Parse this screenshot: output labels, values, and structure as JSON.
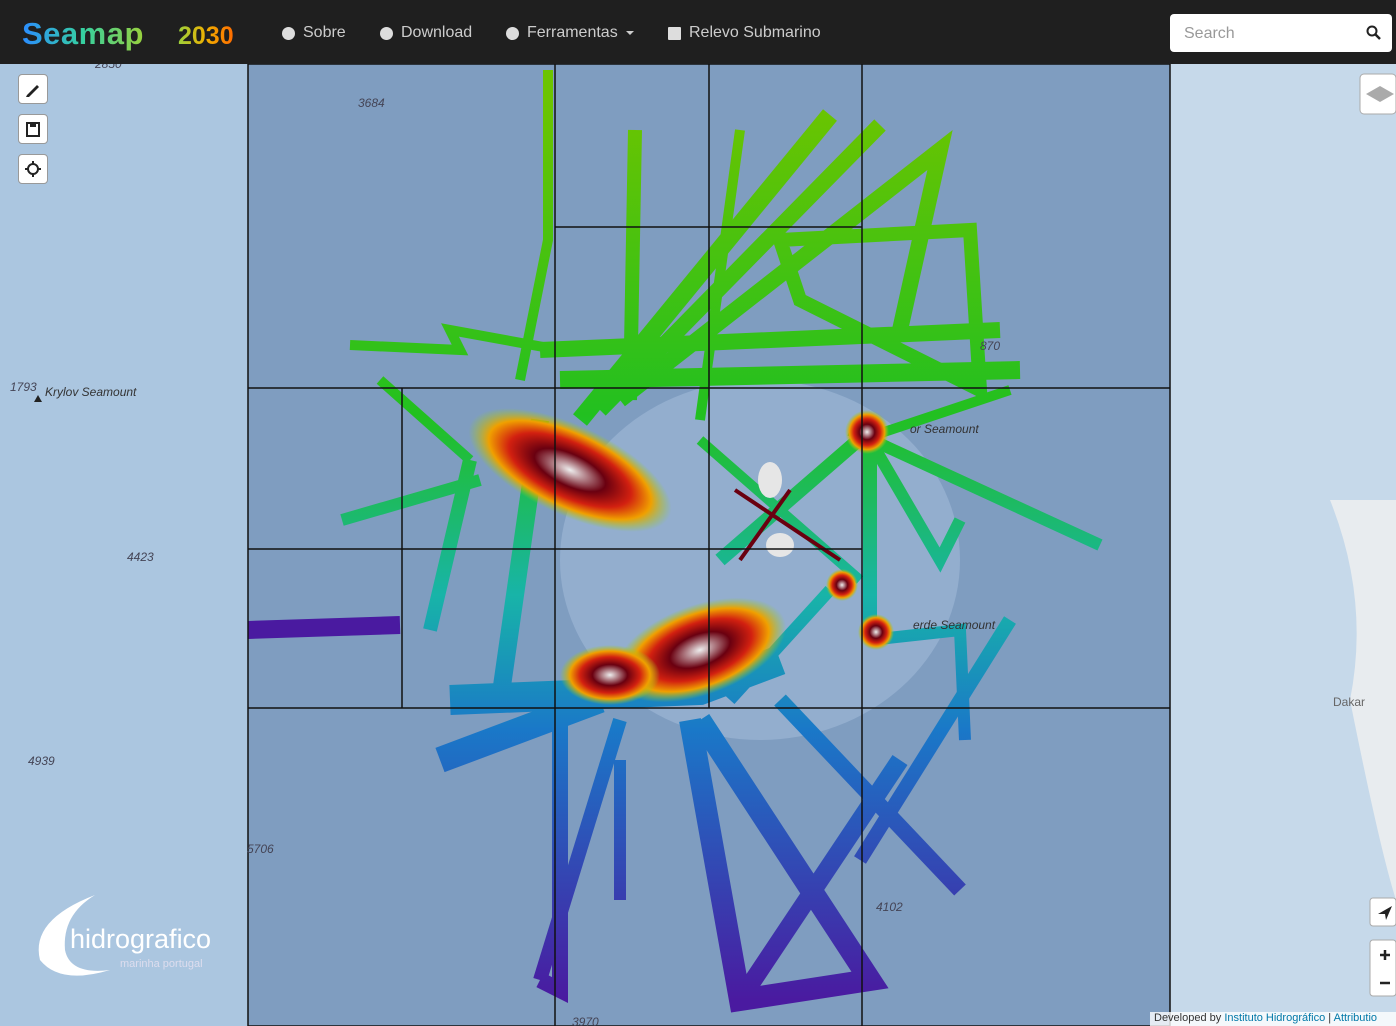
{
  "navbar": {
    "brand": "Seamap",
    "brand_year": "2030",
    "items": [
      "Sobre",
      "Download",
      "Ferramentas",
      "Relevo Submarino"
    ],
    "search_placeholder": "Search"
  },
  "map": {
    "depth_labels": [
      "2850",
      "3684",
      "1793",
      "4423",
      "4939",
      "5706",
      "4102",
      "870",
      "3970"
    ],
    "place_labels": [
      "Krylov Seamount",
      "or Seamount",
      "erde Seamount",
      "Dakar"
    ]
  },
  "logo": {
    "name": "hidrografico",
    "subtitle": "marinha portugal"
  },
  "footer": {
    "credit": "Developed by",
    "link": "Instituto Hidrográfico",
    "attribution": "Attributio"
  }
}
